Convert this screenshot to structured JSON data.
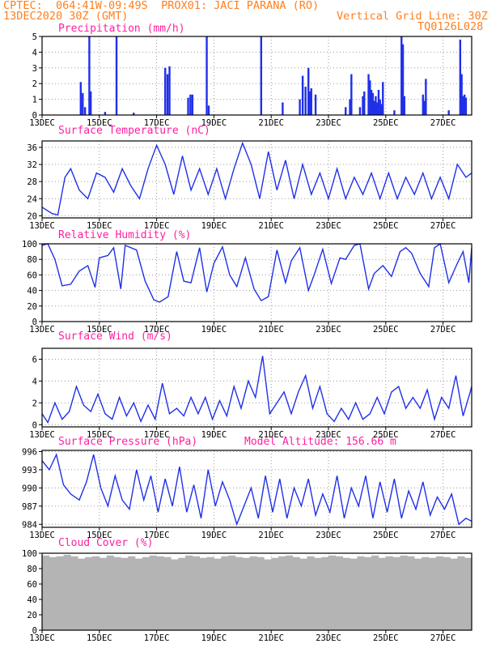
{
  "header": {
    "line1": "CPTEC:  064:41W-09:49S  PROX01: JACI PARANA (RO)",
    "line2_left": "13DEC2020 30Z (GMT)",
    "line2_right": "Vertical Grid Line: 30Z",
    "line3_right": "TQ0126L028"
  },
  "x_tick_labels": [
    "13DEC",
    "15DEC",
    "17DEC",
    "19DEC",
    "21DEC",
    "23DEC",
    "25DEC",
    "27DEC"
  ],
  "x_tick_days": [
    0,
    2,
    4,
    6,
    8,
    10,
    12,
    14
  ],
  "x_range_days": [
    0,
    15
  ],
  "colors": {
    "line": "#2030e8",
    "bars": "#2030e8",
    "cloud": "#b4b4b4",
    "title": "#ff1f9f",
    "header": "#ff7f1f",
    "grid": "#9a9a9a"
  },
  "chart_data": [
    {
      "id": "precip",
      "type": "bar",
      "title": "Precipitation (mm/h)",
      "ylim": [
        0,
        5
      ],
      "yticks": [
        0,
        1,
        2,
        3,
        4,
        5
      ],
      "points": [
        [
          1.35,
          2.1
        ],
        [
          1.42,
          1.4
        ],
        [
          1.5,
          0.5
        ],
        [
          1.65,
          5
        ],
        [
          1.7,
          1.5
        ],
        [
          2.2,
          0.2
        ],
        [
          2.6,
          5
        ],
        [
          3.2,
          0.15
        ],
        [
          4.3,
          3.0
        ],
        [
          4.38,
          2.6
        ],
        [
          4.45,
          3.1
        ],
        [
          5.1,
          1.1
        ],
        [
          5.18,
          1.3
        ],
        [
          5.25,
          1.3
        ],
        [
          5.75,
          5
        ],
        [
          5.82,
          0.6
        ],
        [
          7.65,
          5
        ],
        [
          8.4,
          0.8
        ],
        [
          9.0,
          1.0
        ],
        [
          9.1,
          2.5
        ],
        [
          9.2,
          1.8
        ],
        [
          9.3,
          3.0
        ],
        [
          9.35,
          1.5
        ],
        [
          9.4,
          1.7
        ],
        [
          9.55,
          1.3
        ],
        [
          10.6,
          0.5
        ],
        [
          10.75,
          1.0
        ],
        [
          10.8,
          2.6
        ],
        [
          11.1,
          0.5
        ],
        [
          11.2,
          1.2
        ],
        [
          11.25,
          1.5
        ],
        [
          11.4,
          2.6
        ],
        [
          11.45,
          2.2
        ],
        [
          11.5,
          1.6
        ],
        [
          11.55,
          1.4
        ],
        [
          11.6,
          0.9
        ],
        [
          11.65,
          1.2
        ],
        [
          11.7,
          0.8
        ],
        [
          11.75,
          1.6
        ],
        [
          11.8,
          1.0
        ],
        [
          11.85,
          0.7
        ],
        [
          11.9,
          2.1
        ],
        [
          12.3,
          0.3
        ],
        [
          12.55,
          5
        ],
        [
          12.6,
          4.5
        ],
        [
          12.65,
          1.2
        ],
        [
          13.3,
          1.3
        ],
        [
          13.35,
          0.9
        ],
        [
          13.4,
          2.3
        ],
        [
          14.2,
          0.3
        ],
        [
          14.6,
          4.8
        ],
        [
          14.65,
          2.6
        ],
        [
          14.7,
          1.2
        ],
        [
          14.75,
          1.3
        ],
        [
          14.8,
          1.1
        ]
      ]
    },
    {
      "id": "temp",
      "type": "line",
      "title": "Surface Temperature (nC)",
      "ylim": [
        19.5,
        37.5
      ],
      "yticks": [
        20,
        24,
        28,
        32,
        36
      ],
      "x": [
        0,
        0.35,
        0.55,
        0.8,
        1.0,
        1.3,
        1.6,
        1.9,
        2.2,
        2.5,
        2.8,
        3.1,
        3.4,
        3.7,
        4.0,
        4.3,
        4.6,
        4.9,
        5.2,
        5.5,
        5.8,
        6.1,
        6.4,
        6.7,
        7.0,
        7.3,
        7.6,
        7.9,
        8.2,
        8.5,
        8.8,
        9.1,
        9.4,
        9.7,
        10.0,
        10.3,
        10.6,
        10.9,
        11.2,
        11.5,
        11.8,
        12.1,
        12.4,
        12.7,
        13.0,
        13.3,
        13.6,
        13.9,
        14.2,
        14.5,
        14.8,
        15.0
      ],
      "y": [
        22,
        20.5,
        20.2,
        29,
        31,
        26,
        24,
        30,
        29,
        25.5,
        31,
        27,
        24,
        31,
        36.5,
        32,
        25,
        34,
        26,
        31,
        25,
        31,
        24,
        31,
        37,
        32,
        24,
        35,
        26,
        33,
        24,
        32,
        25,
        30,
        24,
        31,
        24,
        29,
        25,
        30,
        24,
        30,
        24,
        29,
        25,
        30,
        24,
        29,
        24,
        32,
        29,
        30
      ]
    },
    {
      "id": "rh",
      "type": "line",
      "title": "Relative Humidity (%)",
      "ylim": [
        0,
        100
      ],
      "yticks": [
        0,
        20,
        40,
        60,
        80,
        100
      ],
      "x": [
        0,
        0.2,
        0.45,
        0.7,
        1.0,
        1.3,
        1.6,
        1.85,
        2.0,
        2.3,
        2.5,
        2.75,
        2.9,
        3.3,
        3.6,
        3.9,
        4.1,
        4.4,
        4.7,
        4.95,
        5.2,
        5.5,
        5.75,
        6.0,
        6.3,
        6.55,
        6.8,
        7.1,
        7.4,
        7.65,
        7.9,
        8.2,
        8.5,
        8.7,
        9.0,
        9.3,
        9.5,
        9.8,
        10.1,
        10.4,
        10.6,
        10.9,
        11.1,
        11.4,
        11.6,
        11.9,
        12.2,
        12.5,
        12.7,
        12.9,
        13.2,
        13.5,
        13.7,
        13.9,
        14.2,
        14.5,
        14.7,
        14.9,
        15.0
      ],
      "y": [
        98,
        100,
        80,
        46,
        48,
        65,
        72,
        44,
        82,
        85,
        95,
        42,
        98,
        92,
        52,
        28,
        25,
        32,
        90,
        52,
        50,
        95,
        38,
        75,
        96,
        60,
        45,
        82,
        42,
        27,
        32,
        92,
        50,
        78,
        95,
        40,
        60,
        93,
        49,
        82,
        80,
        98,
        100,
        42,
        62,
        72,
        58,
        90,
        95,
        88,
        62,
        45,
        95,
        100,
        50,
        75,
        90,
        50,
        95
      ]
    },
    {
      "id": "wind",
      "type": "line",
      "title": "Surface Wind (m/s)",
      "ylim": [
        -0.2,
        7.0
      ],
      "yticks": [
        0,
        2,
        4,
        6
      ],
      "x": [
        0,
        0.2,
        0.45,
        0.7,
        0.95,
        1.2,
        1.45,
        1.7,
        1.95,
        2.2,
        2.45,
        2.7,
        2.95,
        3.2,
        3.45,
        3.7,
        3.95,
        4.2,
        4.45,
        4.7,
        4.95,
        5.2,
        5.45,
        5.7,
        5.95,
        6.2,
        6.45,
        6.7,
        6.95,
        7.2,
        7.45,
        7.7,
        7.95,
        8.2,
        8.45,
        8.7,
        8.95,
        9.2,
        9.45,
        9.7,
        9.95,
        10.2,
        10.45,
        10.7,
        10.95,
        11.2,
        11.45,
        11.7,
        11.95,
        12.2,
        12.45,
        12.7,
        12.95,
        13.2,
        13.45,
        13.7,
        13.95,
        14.2,
        14.45,
        14.7,
        14.95,
        15.0
      ],
      "y": [
        1,
        0.2,
        2.0,
        0.5,
        1.2,
        3.5,
        1.8,
        1.2,
        2.8,
        1.0,
        0.5,
        2.5,
        0.8,
        2.0,
        0.3,
        1.8,
        0.5,
        3.8,
        1.0,
        1.5,
        0.8,
        2.5,
        1.0,
        2.5,
        0.5,
        2.2,
        0.8,
        3.5,
        1.5,
        4.0,
        2.5,
        6.3,
        1.0,
        2.0,
        3.0,
        1.0,
        3.0,
        4.5,
        1.5,
        3.5,
        1.0,
        0.3,
        1.5,
        0.5,
        2.0,
        0.5,
        1.0,
        2.5,
        1.0,
        3.0,
        3.5,
        1.5,
        2.5,
        1.5,
        3.2,
        0.5,
        2.5,
        1.5,
        4.5,
        0.8,
        3.0,
        3.5
      ]
    },
    {
      "id": "pressure",
      "type": "line",
      "title": "Surface Pressure (hPa)",
      "subtitle": "Model Altitude: 156.66 m",
      "ylim": [
        983.5,
        996.2
      ],
      "yticks": [
        984,
        987,
        990,
        993,
        996
      ],
      "x": [
        0,
        0.25,
        0.5,
        0.75,
        1.0,
        1.3,
        1.55,
        1.8,
        2.05,
        2.3,
        2.55,
        2.8,
        3.05,
        3.3,
        3.55,
        3.8,
        4.05,
        4.3,
        4.55,
        4.8,
        5.05,
        5.3,
        5.55,
        5.8,
        6.05,
        6.3,
        6.55,
        6.8,
        7.05,
        7.3,
        7.55,
        7.8,
        8.05,
        8.3,
        8.55,
        8.8,
        9.05,
        9.3,
        9.55,
        9.8,
        10.05,
        10.3,
        10.55,
        10.8,
        11.05,
        11.3,
        11.55,
        11.8,
        12.05,
        12.3,
        12.55,
        12.8,
        13.05,
        13.3,
        13.55,
        13.8,
        14.05,
        14.3,
        14.55,
        14.8,
        15.0
      ],
      "y": [
        994.5,
        993,
        995.5,
        990.5,
        989,
        988,
        991,
        995.5,
        990,
        987,
        992,
        988,
        986.5,
        993,
        988,
        992,
        986,
        991.5,
        987,
        993.5,
        986,
        990.5,
        985,
        993,
        987,
        991,
        988,
        984,
        987,
        990,
        985,
        992,
        986,
        991.5,
        985,
        990,
        987,
        991.5,
        985.5,
        989,
        986,
        992,
        985,
        990,
        987,
        992,
        985,
        991,
        986,
        991.5,
        985,
        989.5,
        986.5,
        991,
        985.5,
        988.5,
        986.5,
        989,
        984,
        985,
        984.5
      ]
    },
    {
      "id": "cloud",
      "type": "bar",
      "title": "Cloud Cover (%)",
      "ylim": [
        0,
        100
      ],
      "yticks": [
        0,
        20,
        40,
        60,
        80,
        100
      ],
      "x": [
        0,
        0.25,
        0.5,
        0.75,
        1.0,
        1.25,
        1.5,
        1.75,
        2.0,
        2.25,
        2.5,
        2.75,
        3.0,
        3.25,
        3.5,
        3.75,
        4.0,
        4.25,
        4.5,
        4.75,
        5.0,
        5.25,
        5.5,
        5.75,
        6.0,
        6.25,
        6.5,
        6.75,
        7.0,
        7.25,
        7.5,
        7.75,
        8.0,
        8.25,
        8.5,
        8.75,
        9.0,
        9.25,
        9.5,
        9.75,
        10.0,
        10.25,
        10.5,
        10.75,
        11.0,
        11.25,
        11.5,
        11.75,
        12.0,
        12.25,
        12.5,
        12.75,
        13.0,
        13.25,
        13.5,
        13.75,
        14.0,
        14.25,
        14.5,
        14.75
      ],
      "y": [
        97,
        95,
        96,
        98,
        96,
        93,
        95,
        96,
        94,
        97,
        95,
        94,
        96,
        93,
        95,
        97,
        96,
        95,
        92,
        94,
        97,
        96,
        94,
        95,
        93,
        96,
        97,
        95,
        94,
        96,
        95,
        92,
        94,
        96,
        97,
        95,
        93,
        96,
        94,
        95,
        97,
        96,
        94,
        93,
        96,
        95,
        97,
        94,
        96,
        95,
        97,
        96,
        93,
        95,
        94,
        96,
        95,
        93,
        96,
        94
      ]
    }
  ]
}
